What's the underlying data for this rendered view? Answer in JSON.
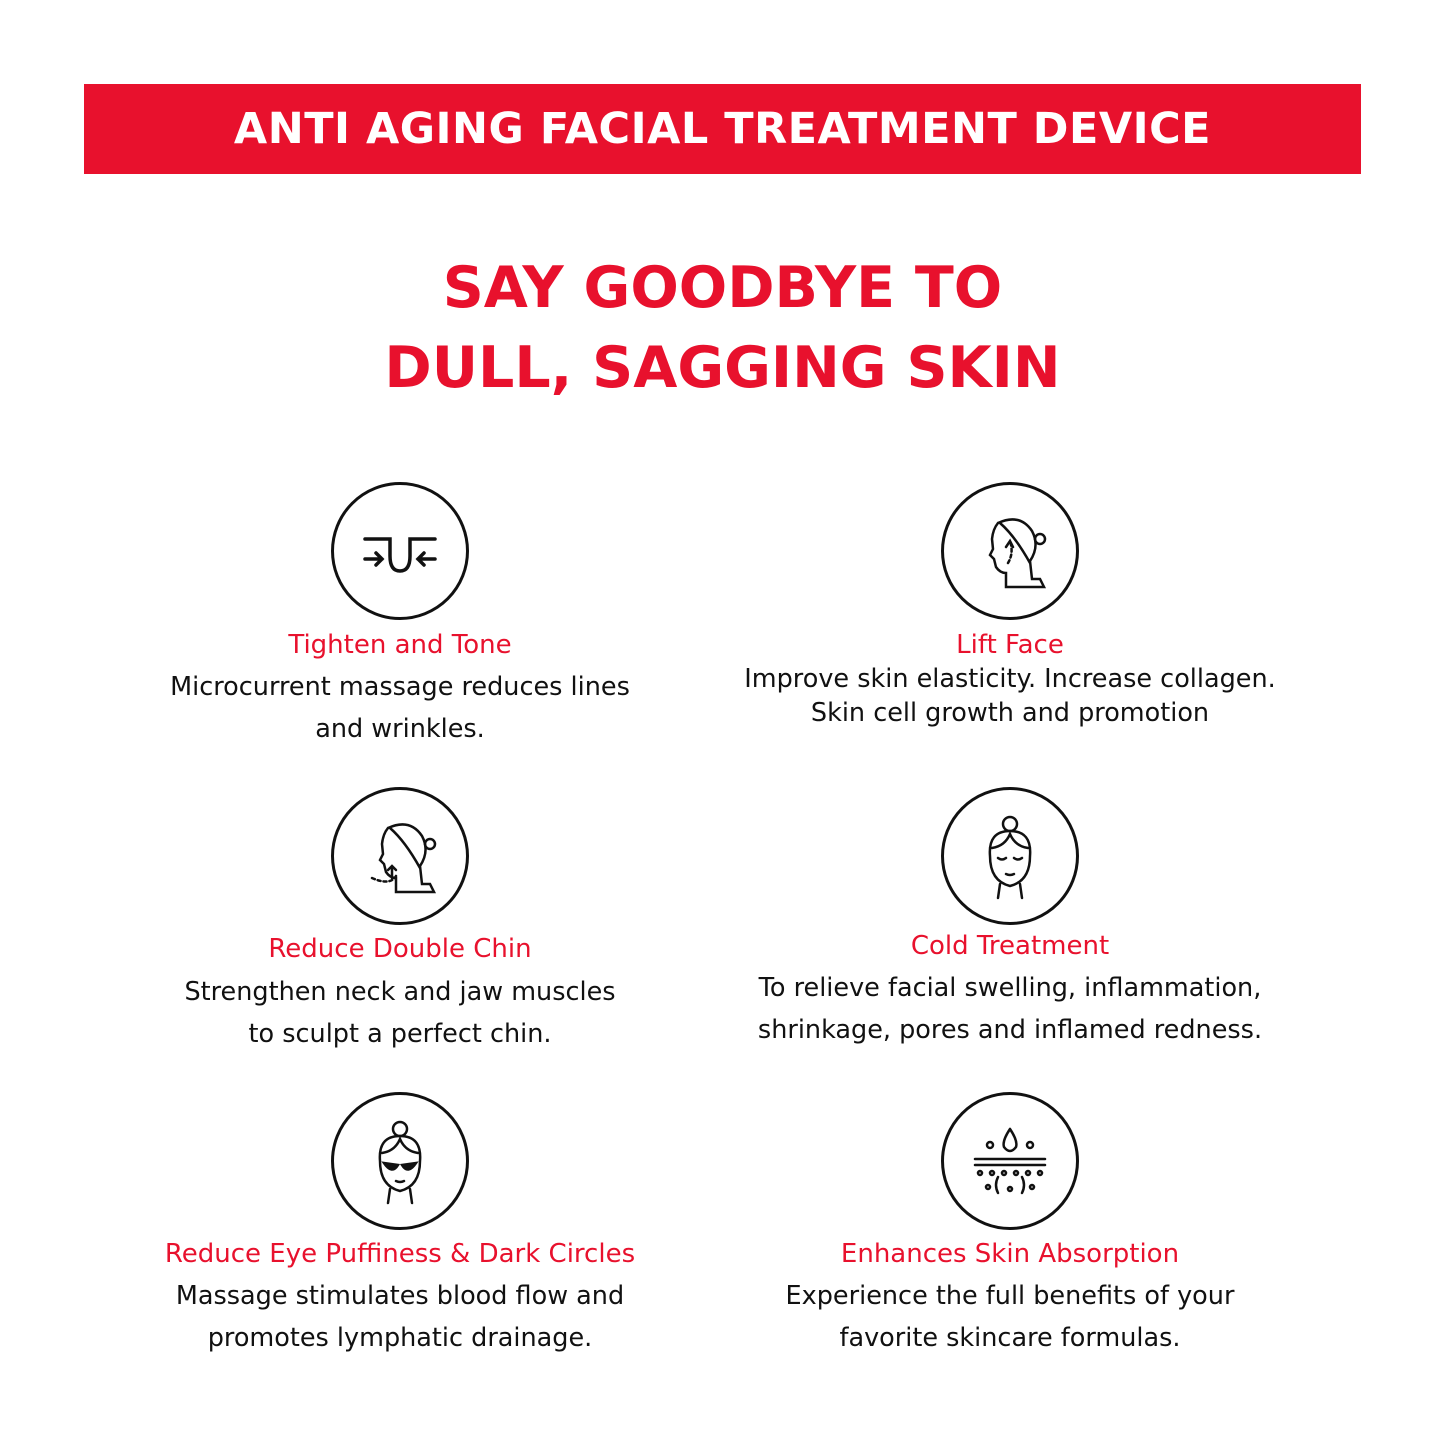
{
  "banner": {
    "title": "ANTI AGING FACIAL TREATMENT DEVICE"
  },
  "headline": {
    "line1": "SAY GOODBYE TO",
    "line2": "DULL, SAGGING SKIN"
  },
  "colors": {
    "accent": "#e8112d",
    "text": "#111111"
  },
  "features": [
    {
      "icon": "pore-tighten-icon",
      "title": "Tighten and Tone",
      "desc": [
        "Microcurrent massage reduces lines",
        "and wrinkles."
      ]
    },
    {
      "icon": "face-lift-icon",
      "title": "Lift Face",
      "desc": [
        "Improve skin elasticity. Increase collagen.",
        "Skin cell growth and promotion"
      ]
    },
    {
      "icon": "double-chin-icon",
      "title": "Reduce Double Chin",
      "desc": [
        "Strengthen neck and jaw muscles",
        "to sculpt a perfect chin."
      ]
    },
    {
      "icon": "cold-face-icon",
      "title": "Cold Treatment",
      "desc": [
        "To relieve facial swelling, inflammation,",
        "shrinkage, pores and inflamed redness."
      ]
    },
    {
      "icon": "eye-patch-icon",
      "title": "Reduce Eye Puffiness & Dark Circles",
      "desc": [
        "Massage stimulates blood flow and",
        "promotes lymphatic drainage."
      ]
    },
    {
      "icon": "skin-absorption-icon",
      "title": "Enhances Skin Absorption",
      "desc": [
        "Experience the full benefits of your",
        "favorite skincare formulas."
      ]
    }
  ]
}
